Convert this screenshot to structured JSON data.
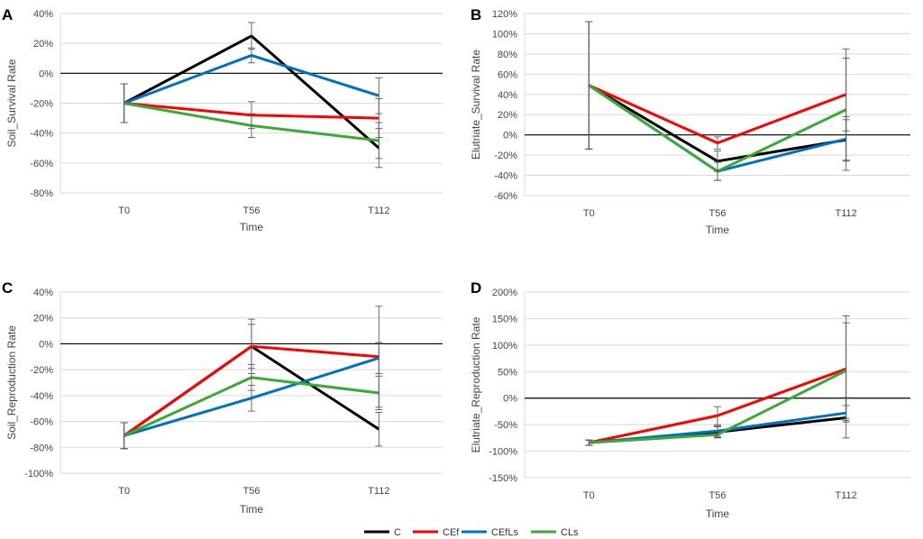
{
  "figure": {
    "legend": [
      {
        "name": "C",
        "color": "#000000"
      },
      {
        "name": "CEf",
        "color": "#ff0000"
      },
      {
        "name": "CEfLs",
        "color": "#0070c0"
      },
      {
        "name": "CLs",
        "color": "#3aa935"
      }
    ]
  },
  "chart_data": [
    {
      "panel": "A",
      "type": "line",
      "categories": [
        "T0",
        "T56",
        "T112"
      ],
      "xlabel": "Time",
      "ylabel": "Soil_Survival Rate",
      "ylim": [
        -80,
        40
      ],
      "ystep": 20,
      "yformat": "percent",
      "grid": true,
      "series": [
        {
          "name": "C",
          "values": [
            -20,
            25,
            -50
          ],
          "errors": [
            13,
            9,
            13
          ]
        },
        {
          "name": "CEf",
          "values": [
            -20,
            -28,
            -30
          ],
          "errors": [
            13,
            9,
            13
          ]
        },
        {
          "name": "CEfLs",
          "values": [
            -20,
            12,
            -15
          ],
          "errors": [
            13,
            5,
            12
          ]
        },
        {
          "name": "CLs",
          "values": [
            -20,
            -35,
            -45
          ],
          "errors": [
            13,
            8,
            12
          ]
        }
      ]
    },
    {
      "panel": "B",
      "type": "line",
      "categories": [
        "T0",
        "T56",
        "T112"
      ],
      "xlabel": "Time",
      "ylabel": "Elutriate_Survival Rate",
      "ylim": [
        -60,
        120
      ],
      "ystep": 20,
      "yformat": "percent",
      "grid": true,
      "series": [
        {
          "name": "C",
          "values": [
            49,
            -26,
            -5
          ],
          "errors": [
            63,
            10,
            20
          ]
        },
        {
          "name": "CEf",
          "values": [
            49,
            -8,
            40
          ],
          "errors": [
            63,
            6,
            36
          ]
        },
        {
          "name": "CEfLs",
          "values": [
            49,
            -36,
            -4
          ],
          "errors": [
            63,
            9,
            22
          ]
        },
        {
          "name": "CLs",
          "values": [
            49,
            -36,
            25
          ],
          "errors": [
            63,
            9,
            60
          ]
        }
      ]
    },
    {
      "panel": "C",
      "type": "line",
      "categories": [
        "T0",
        "T56",
        "T112"
      ],
      "xlabel": "Time",
      "ylabel": "Soil_Reproduction Rate",
      "ylim": [
        -100,
        40
      ],
      "ystep": 20,
      "yformat": "percent",
      "grid": true,
      "series": [
        {
          "name": "C",
          "values": [
            -71,
            -2,
            -66
          ],
          "errors": [
            10,
            17,
            13
          ]
        },
        {
          "name": "CEf",
          "values": [
            -71,
            -2,
            -10
          ],
          "errors": [
            10,
            21,
            39
          ]
        },
        {
          "name": "CEfLs",
          "values": [
            -71,
            -42,
            -11
          ],
          "errors": [
            10,
            10,
            12
          ]
        },
        {
          "name": "CLs",
          "values": [
            -71,
            -26,
            -38
          ],
          "errors": [
            10,
            10,
            13
          ]
        }
      ]
    },
    {
      "panel": "D",
      "type": "line",
      "categories": [
        "T0",
        "T56",
        "T112"
      ],
      "xlabel": "Time",
      "ylabel": "Elutriate_Reproduction Rate",
      "ylim": [
        -150,
        200
      ],
      "ystep": 50,
      "yformat": "percent",
      "grid": true,
      "series": [
        {
          "name": "C",
          "values": [
            -84,
            -64,
            -37
          ],
          "errors": [
            5,
            10,
            38
          ]
        },
        {
          "name": "CEf",
          "values": [
            -84,
            -33,
            55
          ],
          "errors": [
            5,
            17,
            100
          ]
        },
        {
          "name": "CEfLs",
          "values": [
            -84,
            -62,
            -28
          ],
          "errors": [
            5,
            10,
            14
          ]
        },
        {
          "name": "CLs",
          "values": [
            -84,
            -69,
            52
          ],
          "errors": [
            5,
            6,
            90
          ]
        }
      ]
    }
  ]
}
